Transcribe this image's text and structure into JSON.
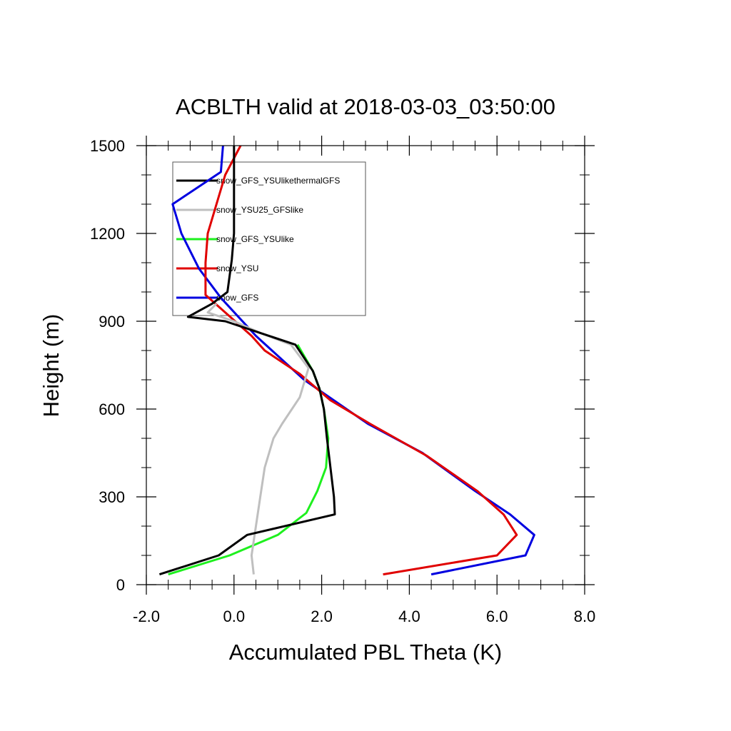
{
  "chart_data": {
    "type": "line",
    "title": "ACBLTH valid at 2018-03-03_03:50:00",
    "xlabel": "Accumulated PBL Theta (K)",
    "ylabel": "Height (m)",
    "xlim": [
      -2.0,
      8.0
    ],
    "ylim": [
      0,
      1500
    ],
    "xticks": [
      -2.0,
      0.0,
      2.0,
      4.0,
      6.0,
      8.0
    ],
    "xtick_labels": [
      "-2.0",
      "0.0",
      "2.0",
      "4.0",
      "6.0",
      "8.0"
    ],
    "yticks": [
      0,
      300,
      600,
      900,
      1200,
      1500
    ],
    "ytick_labels": [
      "0",
      "300",
      "600",
      "900",
      "1200",
      "1500"
    ],
    "grid": false,
    "legend_position": "top-left",
    "series": [
      {
        "name": "snow_GFS_YSUlikethermalGFS",
        "color": "#000000",
        "points": [
          [
            -1.7,
            35
          ],
          [
            -0.35,
            100
          ],
          [
            0.3,
            170
          ],
          [
            2.3,
            240
          ],
          [
            2.28,
            300
          ],
          [
            2.2,
            400
          ],
          [
            2.12,
            500
          ],
          [
            2.05,
            600
          ],
          [
            1.95,
            670
          ],
          [
            1.8,
            730
          ],
          [
            1.4,
            820
          ],
          [
            0.6,
            860
          ],
          [
            -0.2,
            900
          ],
          [
            -1.05,
            915
          ],
          [
            -0.5,
            960
          ],
          [
            -0.15,
            1000
          ],
          [
            -0.05,
            1110
          ],
          [
            0.0,
            1200
          ],
          [
            0.0,
            1300
          ],
          [
            0.0,
            1500
          ]
        ]
      },
      {
        "name": "snow_YSU25_GFSlike",
        "color": "#bfbfbf",
        "points": [
          [
            0.45,
            35
          ],
          [
            0.4,
            100
          ],
          [
            0.5,
            200
          ],
          [
            0.6,
            300
          ],
          [
            0.7,
            400
          ],
          [
            0.9,
            500
          ],
          [
            1.1,
            550
          ],
          [
            1.5,
            640
          ],
          [
            1.7,
            740
          ],
          [
            1.3,
            820
          ],
          [
            0.6,
            860
          ],
          [
            0.0,
            900
          ],
          [
            -0.6,
            930
          ],
          [
            -0.4,
            960
          ]
        ]
      },
      {
        "name": "snow_GFS_YSUlike",
        "color": "#1ef01e",
        "points": [
          [
            -1.5,
            35
          ],
          [
            -0.1,
            100
          ],
          [
            1.0,
            170
          ],
          [
            1.65,
            245
          ],
          [
            1.9,
            320
          ],
          [
            2.1,
            400
          ],
          [
            2.15,
            500
          ],
          [
            2.05,
            600
          ],
          [
            1.95,
            670
          ],
          [
            1.8,
            730
          ],
          [
            1.45,
            820
          ]
        ]
      },
      {
        "name": "snow_YSU",
        "color": "#e00000",
        "points": [
          [
            3.4,
            35
          ],
          [
            6.0,
            100
          ],
          [
            6.45,
            170
          ],
          [
            6.15,
            240
          ],
          [
            5.55,
            320
          ],
          [
            4.4,
            440
          ],
          [
            3.1,
            550
          ],
          [
            2.2,
            630
          ],
          [
            1.5,
            720
          ],
          [
            0.7,
            800
          ],
          [
            0.4,
            850
          ],
          [
            -0.65,
            990
          ],
          [
            -0.65,
            1100
          ],
          [
            -0.6,
            1200
          ],
          [
            -0.2,
            1400
          ],
          [
            0.15,
            1500
          ]
        ]
      },
      {
        "name": "snow_GFS",
        "color": "#0000e0",
        "points": [
          [
            4.5,
            35
          ],
          [
            6.65,
            100
          ],
          [
            6.85,
            170
          ],
          [
            6.3,
            240
          ],
          [
            5.5,
            320
          ],
          [
            4.3,
            450
          ],
          [
            3.05,
            550
          ],
          [
            1.6,
            700
          ],
          [
            0.5,
            850
          ],
          [
            -0.3,
            980
          ],
          [
            -0.8,
            1080
          ],
          [
            -1.2,
            1200
          ],
          [
            -1.4,
            1300
          ],
          [
            -0.3,
            1410
          ],
          [
            -0.25,
            1500
          ]
        ]
      }
    ]
  }
}
